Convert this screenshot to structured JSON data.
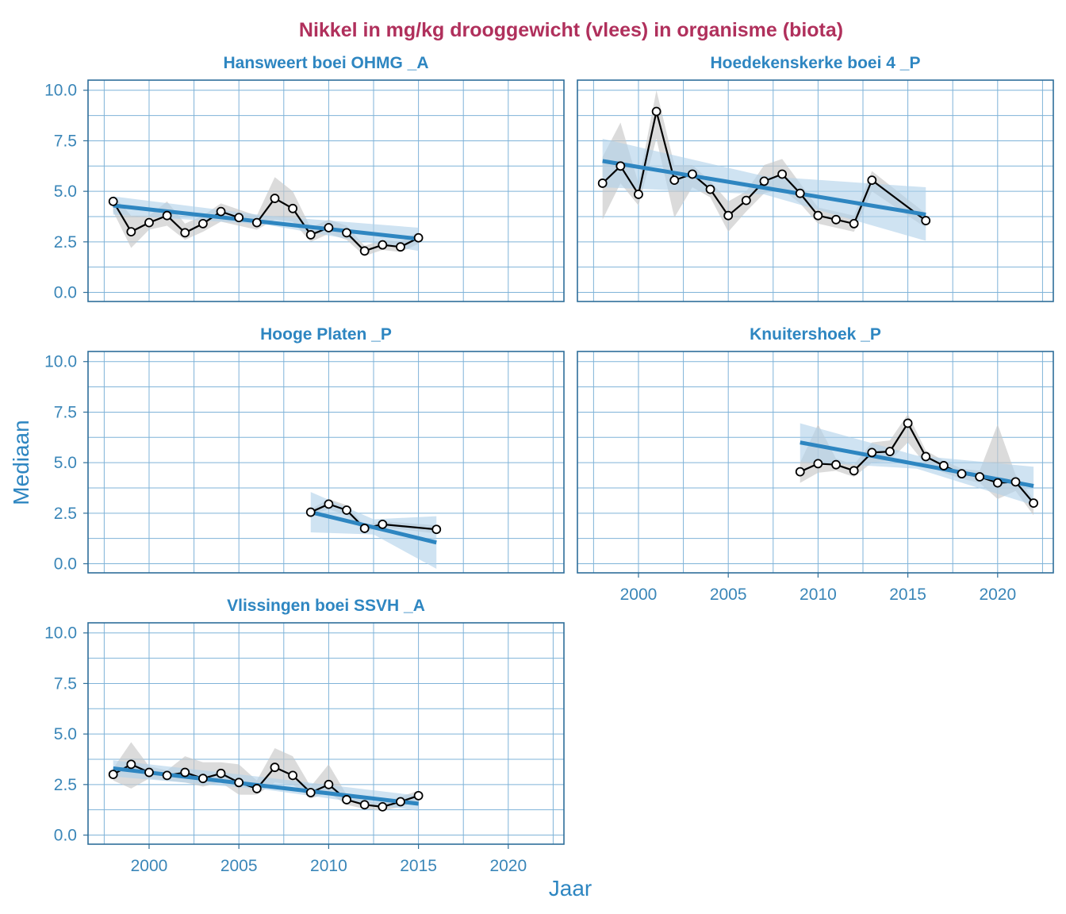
{
  "colors": {
    "title": "#B0305C",
    "strip_text": "#2E86C1",
    "axis_text": "#2E86C1",
    "tick_text": "#3A86B8",
    "panel_border": "#2E6E9A",
    "grid": "#7FB3D8",
    "trend_line": "#2E86C1",
    "trend_band": "#AFD0EA",
    "ci_band": "#C8C8C8",
    "series_line": "#000000",
    "point_fill": "#FFFFFF"
  },
  "chart_data": {
    "type": "line",
    "title": "Nikkel in mg/kg drooggewicht (vlees) in organisme (biota)",
    "xlabel": "Jaar",
    "ylabel": "Mediaan",
    "xlim": [
      1996.6,
      2023.1
    ],
    "ylim": [
      -0.45,
      10.5
    ],
    "x_ticks": [
      2000,
      2005,
      2010,
      2015,
      2020
    ],
    "x_tick_labels": [
      "2000",
      "2005",
      "2010",
      "2015",
      "2020"
    ],
    "y_ticks": [
      0,
      2.5,
      5,
      7.5,
      10
    ],
    "y_tick_labels": [
      "0.0",
      "2.5",
      "5.0",
      "7.5",
      "10.0"
    ],
    "grid": true,
    "panels": [
      {
        "label": "Hansweert boei OHMG _A",
        "x": [
          1998,
          1999,
          2000,
          2001,
          2002,
          2003,
          2004,
          2005,
          2006,
          2007,
          2008,
          2009,
          2010,
          2011,
          2012,
          2013,
          2014,
          2015
        ],
        "y": [
          4.5,
          3.0,
          3.45,
          3.8,
          2.95,
          3.4,
          4.0,
          3.7,
          3.45,
          4.65,
          4.15,
          2.85,
          3.2,
          2.95,
          2.05,
          2.35,
          2.25,
          2.7
        ],
        "ci_low": [
          4.0,
          2.2,
          3.1,
          3.3,
          2.6,
          3.0,
          3.5,
          3.3,
          3.1,
          3.6,
          3.5,
          2.5,
          2.9,
          2.6,
          1.8,
          2.1,
          2.0,
          2.4
        ],
        "ci_high": [
          4.8,
          3.8,
          3.8,
          4.5,
          3.4,
          3.8,
          4.4,
          4.1,
          3.8,
          5.7,
          5.0,
          3.2,
          3.6,
          3.3,
          2.3,
          2.6,
          2.5,
          3.0
        ],
        "trend": {
          "x": [
            1998,
            2015
          ],
          "y": [
            4.3,
            2.65
          ]
        },
        "trend_band": {
          "x": [
            1998,
            2006.5,
            2015
          ],
          "low": [
            3.85,
            3.35,
            2.05
          ],
          "high": [
            4.75,
            3.8,
            3.2
          ]
        },
        "x_axis_visible": false
      },
      {
        "label": "Hoedekenskerke boei 4 _P",
        "x": [
          1998,
          1999,
          2000,
          2001,
          2002,
          2003,
          2004,
          2005,
          2006,
          2007,
          2008,
          2009,
          2010,
          2011,
          2012,
          2013,
          2016
        ],
        "y": [
          5.4,
          6.25,
          4.85,
          8.95,
          5.55,
          5.85,
          5.1,
          3.8,
          4.55,
          5.5,
          5.85,
          4.9,
          3.8,
          3.6,
          3.4,
          5.55,
          3.55
        ],
        "ci_low": [
          3.6,
          5.4,
          4.3,
          7.6,
          3.7,
          5.2,
          4.7,
          3.0,
          4.0,
          4.9,
          5.1,
          4.4,
          3.4,
          3.2,
          3.0,
          5.0,
          3.2
        ],
        "ci_high": [
          6.7,
          8.4,
          5.4,
          10.0,
          6.3,
          6.3,
          5.5,
          4.5,
          5.0,
          6.3,
          6.6,
          5.4,
          4.2,
          4.0,
          3.8,
          6.0,
          3.9
        ],
        "trend": {
          "x": [
            1998,
            2016
          ],
          "y": [
            6.5,
            3.85
          ]
        },
        "trend_band": {
          "x": [
            1998,
            2007,
            2016
          ],
          "low": [
            5.2,
            4.85,
            2.55
          ],
          "high": [
            7.6,
            5.75,
            5.2
          ]
        },
        "x_axis_visible": false
      },
      {
        "label": "Hooge Platen _P",
        "x": [
          2009,
          2010,
          2011,
          2012,
          2013,
          2016
        ],
        "y": [
          2.55,
          2.95,
          2.65,
          1.75,
          1.95,
          1.7
        ],
        "ci_low": [
          2.4,
          2.7,
          2.4,
          1.6,
          1.8,
          1.5
        ],
        "ci_high": [
          2.7,
          3.2,
          2.9,
          1.9,
          2.1,
          1.9
        ],
        "trend": {
          "x": [
            2009,
            2016
          ],
          "y": [
            2.55,
            1.05
          ]
        },
        "trend_band": {
          "x": [
            2009,
            2012.5,
            2016
          ],
          "low": [
            1.55,
            1.45,
            -0.25
          ],
          "high": [
            3.55,
            2.2,
            2.35
          ]
        },
        "x_axis_visible": false
      },
      {
        "label": "Knuitershoek _P",
        "x": [
          2009,
          2010,
          2011,
          2012,
          2013,
          2014,
          2015,
          2016,
          2017,
          2018,
          2019,
          2020,
          2021,
          2022
        ],
        "y": [
          4.55,
          4.95,
          4.9,
          4.6,
          5.5,
          5.55,
          6.95,
          5.3,
          4.85,
          4.45,
          4.3,
          4.0,
          4.05,
          3.0
        ],
        "ci_low": [
          4.0,
          4.5,
          4.6,
          4.3,
          5.0,
          5.1,
          6.0,
          4.9,
          4.5,
          4.2,
          4.0,
          3.2,
          3.6,
          2.4
        ],
        "ci_high": [
          5.0,
          6.9,
          5.2,
          4.9,
          6.0,
          6.1,
          7.4,
          5.6,
          5.1,
          4.7,
          4.6,
          6.9,
          4.4,
          3.2
        ],
        "trend": {
          "x": [
            2009,
            2022
          ],
          "y": [
            6.0,
            3.85
          ]
        },
        "trend_band": {
          "x": [
            2009,
            2015.5,
            2022
          ],
          "low": [
            5.05,
            4.7,
            2.9
          ],
          "high": [
            6.95,
            5.35,
            4.8
          ]
        },
        "x_axis_visible": true
      },
      {
        "label": "Vlissingen boei SSVH _A",
        "x": [
          1998,
          1999,
          2000,
          2001,
          2002,
          2003,
          2004,
          2005,
          2006,
          2007,
          2008,
          2009,
          2010,
          2011,
          2012,
          2013,
          2014,
          2015
        ],
        "y": [
          3.0,
          3.5,
          3.1,
          2.95,
          3.1,
          2.8,
          3.05,
          2.6,
          2.3,
          3.35,
          2.95,
          2.1,
          2.5,
          1.75,
          1.5,
          1.4,
          1.65,
          1.95
        ],
        "ci_low": [
          2.7,
          2.3,
          2.8,
          2.7,
          2.6,
          2.4,
          2.6,
          2.0,
          2.0,
          2.6,
          2.5,
          1.8,
          2.1,
          1.5,
          1.3,
          1.2,
          1.4,
          1.7
        ],
        "ci_high": [
          3.3,
          4.6,
          3.4,
          3.2,
          3.9,
          3.6,
          3.6,
          3.5,
          2.7,
          4.3,
          3.9,
          2.4,
          3.5,
          2.0,
          1.7,
          1.6,
          1.9,
          2.2
        ],
        "trend": {
          "x": [
            1998,
            2015
          ],
          "y": [
            3.3,
            1.55
          ]
        },
        "trend_band": {
          "x": [
            1998,
            2006.5,
            2015
          ],
          "low": [
            2.9,
            2.25,
            1.2
          ],
          "high": [
            3.7,
            2.85,
            1.95
          ]
        },
        "x_axis_visible": true
      }
    ]
  }
}
